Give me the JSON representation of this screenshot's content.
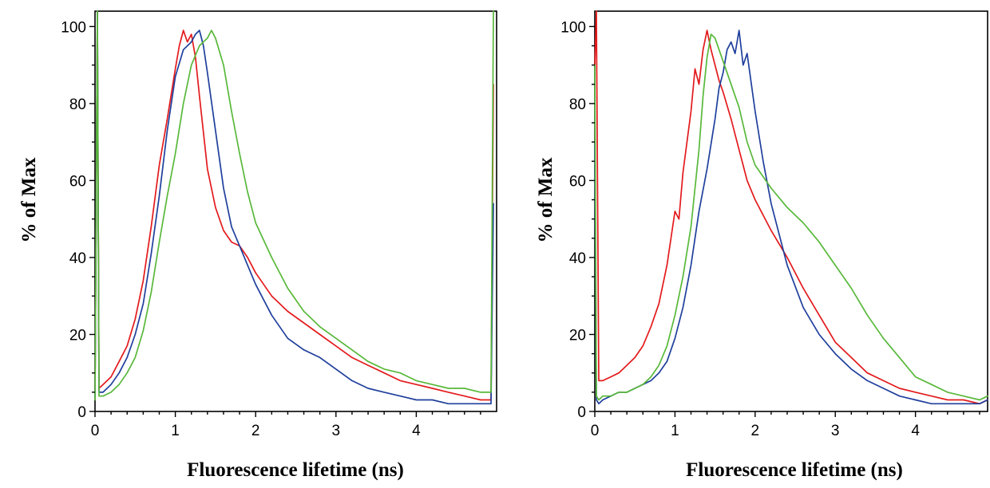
{
  "chart_data": [
    {
      "type": "line",
      "xlabel": "Fluorescence lifetime (ns)",
      "ylabel": "% of Max",
      "xlim": [
        0,
        5.0
      ],
      "ylim": [
        0,
        104
      ],
      "xticks": [
        "0",
        "1",
        "2",
        "3",
        "4"
      ],
      "yticks": [
        "0",
        "20",
        "40",
        "60",
        "80",
        "100"
      ],
      "grid": false,
      "series": [
        {
          "color": "#e31a1c",
          "x": [
            0.0,
            0.03,
            0.05,
            0.1,
            0.2,
            0.3,
            0.4,
            0.5,
            0.6,
            0.7,
            0.8,
            0.9,
            1.0,
            1.05,
            1.1,
            1.15,
            1.2,
            1.25,
            1.3,
            1.4,
            1.5,
            1.6,
            1.7,
            1.8,
            1.9,
            2.0,
            2.2,
            2.4,
            2.6,
            2.8,
            3.0,
            3.2,
            3.4,
            3.6,
            3.8,
            4.0,
            4.2,
            4.4,
            4.6,
            4.8,
            4.93,
            4.96
          ],
          "y": [
            5,
            104,
            6,
            7,
            9,
            13,
            17,
            24,
            34,
            48,
            64,
            76,
            89,
            95,
            99,
            96,
            98,
            92,
            82,
            63,
            53,
            47,
            44,
            43,
            40,
            36,
            30,
            26,
            23,
            20,
            17,
            14,
            12,
            10,
            8,
            7,
            6,
            5,
            4,
            3,
            3,
            85
          ]
        },
        {
          "color": "#1f3f9c",
          "x": [
            0.0,
            0.03,
            0.05,
            0.1,
            0.2,
            0.3,
            0.4,
            0.5,
            0.6,
            0.7,
            0.8,
            0.9,
            1.0,
            1.1,
            1.2,
            1.25,
            1.3,
            1.35,
            1.4,
            1.5,
            1.6,
            1.7,
            1.8,
            1.9,
            2.0,
            2.2,
            2.4,
            2.6,
            2.8,
            3.0,
            3.2,
            3.4,
            3.6,
            3.8,
            4.0,
            4.2,
            4.4,
            4.6,
            4.8,
            4.93,
            4.96
          ],
          "y": [
            4,
            104,
            5,
            5,
            7,
            10,
            14,
            20,
            28,
            41,
            56,
            73,
            87,
            94,
            96,
            98,
            99,
            95,
            88,
            73,
            58,
            48,
            43,
            38,
            33,
            25,
            19,
            16,
            14,
            11,
            8,
            6,
            5,
            4,
            3,
            3,
            2,
            2,
            2,
            2,
            54
          ]
        },
        {
          "color": "#58b83a",
          "x": [
            0.0,
            0.03,
            0.05,
            0.1,
            0.2,
            0.3,
            0.4,
            0.5,
            0.6,
            0.7,
            0.8,
            0.9,
            1.0,
            1.1,
            1.2,
            1.3,
            1.4,
            1.45,
            1.5,
            1.6,
            1.7,
            1.8,
            1.9,
            2.0,
            2.2,
            2.4,
            2.6,
            2.8,
            3.0,
            3.2,
            3.4,
            3.6,
            3.8,
            4.0,
            4.2,
            4.4,
            4.6,
            4.8,
            4.93,
            4.96
          ],
          "y": [
            3,
            104,
            4,
            4,
            5,
            7,
            10,
            14,
            21,
            31,
            44,
            56,
            67,
            80,
            90,
            95,
            97,
            99,
            97,
            90,
            78,
            67,
            57,
            49,
            40,
            32,
            26,
            22,
            19,
            16,
            13,
            11,
            10,
            8,
            7,
            6,
            6,
            5,
            5,
            104
          ]
        }
      ]
    },
    {
      "type": "line",
      "xlabel": "Fluorescence lifetime (ns)",
      "ylabel": "% of Max",
      "xlim": [
        0,
        4.9
      ],
      "ylim": [
        0,
        104
      ],
      "xticks": [
        "0",
        "1",
        "2",
        "3",
        "4"
      ],
      "yticks": [
        "0",
        "20",
        "40",
        "60",
        "80",
        "100"
      ],
      "grid": false,
      "series": [
        {
          "color": "#e31a1c",
          "x": [
            0.0,
            0.02,
            0.05,
            0.1,
            0.2,
            0.3,
            0.4,
            0.5,
            0.6,
            0.7,
            0.8,
            0.9,
            1.0,
            1.05,
            1.1,
            1.2,
            1.25,
            1.3,
            1.35,
            1.4,
            1.45,
            1.5,
            1.55,
            1.6,
            1.7,
            1.8,
            1.9,
            2.0,
            2.2,
            2.4,
            2.6,
            2.8,
            3.0,
            3.2,
            3.4,
            3.6,
            3.8,
            4.0,
            4.2,
            4.4,
            4.6,
            4.8,
            4.9
          ],
          "y": [
            90,
            104,
            8,
            8,
            9,
            10,
            12,
            14,
            17,
            22,
            28,
            38,
            52,
            50,
            62,
            78,
            89,
            85,
            94,
            99,
            94,
            90,
            86,
            83,
            76,
            68,
            60,
            55,
            47,
            40,
            32,
            25,
            18,
            14,
            10,
            8,
            6,
            5,
            4,
            3,
            3,
            2,
            3
          ]
        },
        {
          "color": "#1f3f9c",
          "x": [
            0.0,
            0.02,
            0.05,
            0.1,
            0.2,
            0.3,
            0.4,
            0.5,
            0.6,
            0.7,
            0.8,
            0.9,
            1.0,
            1.1,
            1.2,
            1.3,
            1.4,
            1.5,
            1.55,
            1.6,
            1.65,
            1.7,
            1.75,
            1.8,
            1.85,
            1.9,
            2.0,
            2.1,
            2.2,
            2.4,
            2.6,
            2.8,
            3.0,
            3.2,
            3.4,
            3.6,
            3.8,
            4.0,
            4.2,
            4.4,
            4.6,
            4.8,
            4.9
          ],
          "y": [
            70,
            3,
            2,
            3,
            4,
            5,
            5,
            6,
            7,
            8,
            10,
            13,
            19,
            27,
            38,
            52,
            63,
            76,
            84,
            88,
            94,
            96,
            93,
            99,
            90,
            93,
            78,
            65,
            54,
            38,
            27,
            20,
            15,
            11,
            8,
            6,
            4,
            3,
            2,
            2,
            2,
            2,
            3
          ]
        },
        {
          "color": "#58b83a",
          "x": [
            0.0,
            0.02,
            0.05,
            0.1,
            0.2,
            0.3,
            0.4,
            0.5,
            0.6,
            0.7,
            0.8,
            0.9,
            1.0,
            1.1,
            1.2,
            1.3,
            1.35,
            1.4,
            1.45,
            1.5,
            1.6,
            1.7,
            1.8,
            1.9,
            2.0,
            2.2,
            2.4,
            2.6,
            2.8,
            3.0,
            3.2,
            3.4,
            3.6,
            3.8,
            4.0,
            4.2,
            4.4,
            4.6,
            4.8,
            4.9
          ],
          "y": [
            90,
            4,
            3,
            4,
            4,
            5,
            5,
            6,
            7,
            9,
            12,
            17,
            25,
            35,
            48,
            68,
            82,
            92,
            98,
            97,
            91,
            85,
            79,
            70,
            64,
            58,
            53,
            49,
            44,
            38,
            32,
            25,
            19,
            14,
            9,
            7,
            5,
            4,
            3,
            4
          ]
        }
      ]
    }
  ]
}
